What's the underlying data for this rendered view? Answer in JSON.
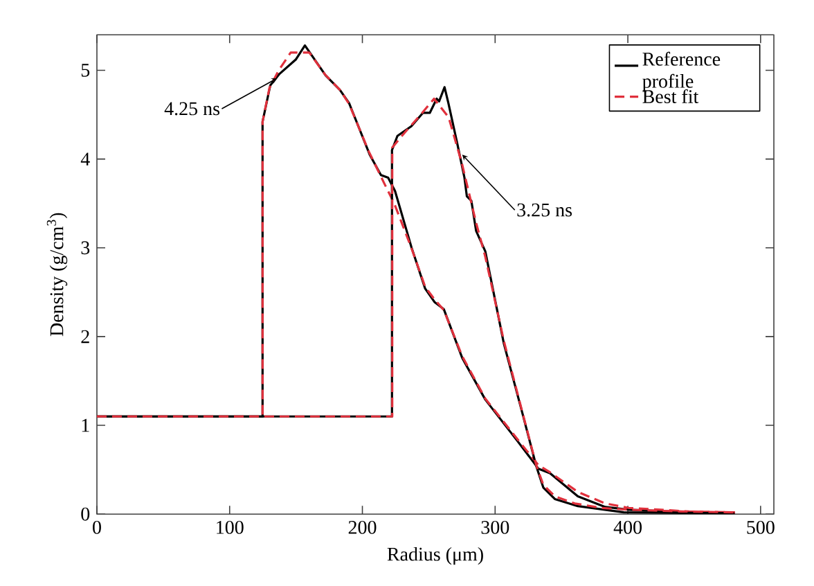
{
  "chart_data": {
    "type": "line",
    "xlabel": "Radius (μm)",
    "ylabel": "Density (g/cm$^{3}$)",
    "xlim": [
      0,
      510
    ],
    "ylim": [
      0,
      5.4
    ],
    "xticks": [
      0,
      100,
      200,
      300,
      400,
      500
    ],
    "yticks": [
      0,
      1,
      2,
      3,
      4,
      5
    ],
    "grid": false,
    "legend": "top right",
    "marker": "none",
    "annotations": [
      {
        "text": "4.25 ns",
        "x": 135.8,
        "y": 4.91
      },
      {
        "text": "3.25 ns",
        "x": 275.2,
        "y": 4.05
      }
    ],
    "series": [
      {
        "name": "Reference profile",
        "color": "#000000",
        "line_style": "solid",
        "x": [
          0,
          124.8,
          124.8,
          130.6,
          137.6,
          149.8,
          156.7,
          172.4,
          183,
          190,
          205.5,
          214,
          219.4,
          224.6,
          233.4,
          236.9,
          247.3,
          254.3,
          261.3,
          275.2,
          292.6,
          317,
          332.7,
          341.4,
          362.3,
          383,
          400.6,
          446,
          480.7
        ],
        "values": [
          1.1,
          1.1,
          4.42,
          4.83,
          4.96,
          5.12,
          5.28,
          4.94,
          4.78,
          4.63,
          4.05,
          3.82,
          3.79,
          3.64,
          3.19,
          3.01,
          2.54,
          2.39,
          2.31,
          1.76,
          1.29,
          0.82,
          0.51,
          0.46,
          0.2,
          0.08,
          0.05,
          0.02,
          0.01
        ]
      },
      {
        "name": "Best fit",
        "color": "#e0303c",
        "line_style": "dashed",
        "x": [
          0,
          124.8,
          124.8,
          130,
          137,
          146,
          160,
          172,
          183,
          190,
          205,
          216,
          224,
          236.9,
          247.3,
          254.3,
          261.3,
          275.2,
          292.6,
          317,
          332.7,
          341.4,
          362.3,
          383,
          400.6,
          446,
          480.7
        ],
        "values": [
          1.1,
          1.1,
          4.42,
          4.8,
          5.0,
          5.2,
          5.2,
          4.95,
          4.78,
          4.62,
          4.08,
          3.74,
          3.5,
          3.0,
          2.56,
          2.42,
          2.3,
          1.78,
          1.3,
          0.84,
          0.55,
          0.47,
          0.25,
          0.12,
          0.07,
          0.03,
          0.02
        ]
      },
      {
        "color": "#000000",
        "line_style": "solid",
        "x": [
          0,
          222.3,
          222.3,
          226.4,
          236.9,
          245.6,
          250.8,
          256,
          257.8,
          261.9,
          264.8,
          271.7,
          276.9,
          278.7,
          282.1,
          285.7,
          292.6,
          306.6,
          320.5,
          331,
          336.3,
          345,
          362.3,
          397,
          480
        ],
        "values": [
          1.1,
          1.1,
          4.1,
          4.26,
          4.37,
          4.52,
          4.52,
          4.68,
          4.65,
          4.81,
          4.63,
          4.16,
          3.79,
          3.58,
          3.53,
          3.19,
          2.96,
          1.92,
          1.14,
          0.54,
          0.3,
          0.17,
          0.09,
          0.02,
          0.01
        ]
      },
      {
        "color": "#e0303c",
        "line_style": "dashed",
        "x": [
          0,
          222.5,
          222.5,
          232,
          244,
          254,
          265,
          275,
          285.7,
          292.6,
          306.6,
          320.5,
          331,
          336.3,
          345,
          360,
          380,
          400,
          440,
          480
        ],
        "values": [
          1.1,
          1.1,
          4.13,
          4.3,
          4.5,
          4.68,
          4.47,
          3.95,
          3.28,
          2.9,
          1.95,
          1.15,
          0.55,
          0.33,
          0.2,
          0.12,
          0.07,
          0.05,
          0.03,
          0.02
        ]
      }
    ]
  }
}
